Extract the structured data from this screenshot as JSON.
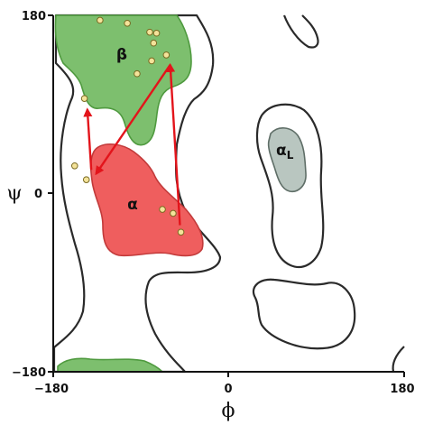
{
  "axes": {
    "x_title": "ϕ",
    "y_title": "ψ",
    "x_ticks": [
      "−180",
      "0",
      "180"
    ],
    "y_ticks": [
      "180",
      "0",
      "−180"
    ],
    "range": [
      -180,
      180
    ]
  },
  "regions": {
    "beta": {
      "label": "β",
      "fill": "#7dbf6e",
      "stroke": "#4f9a3f"
    },
    "alpha": {
      "label": "α",
      "fill": "#ef5e5e",
      "stroke": "#c23a3a"
    },
    "alphaL": {
      "label_main": "α",
      "label_sub": "L",
      "fill": "#b9c6c0",
      "stroke": "#5f6e67"
    }
  },
  "outline_color": "#2a2a2a",
  "arrow_color": "#e3141b",
  "point_fill": "#f4e39a",
  "point_stroke": "#7a6a22",
  "points": [
    {
      "phi": -132,
      "psi": 175
    },
    {
      "phi": -104,
      "psi": 172
    },
    {
      "phi": -81,
      "psi": 163
    },
    {
      "phi": -74,
      "psi": 162
    },
    {
      "phi": -77,
      "psi": 152
    },
    {
      "phi": -64,
      "psi": 140
    },
    {
      "phi": -79,
      "psi": 134
    },
    {
      "phi": -94,
      "psi": 121
    },
    {
      "phi": -148,
      "psi": 96
    },
    {
      "phi": -158,
      "psi": 28
    },
    {
      "phi": -146,
      "psi": 14
    },
    {
      "phi": -68,
      "psi": -16
    },
    {
      "phi": -57,
      "psi": -20
    },
    {
      "phi": -49,
      "psi": -39
    }
  ],
  "arrows": [
    {
      "from": [
        -141,
        24
      ],
      "to": [
        -145,
        85
      ]
    },
    {
      "from": [
        -50,
        -32
      ],
      "to": [
        -60,
        130
      ]
    },
    {
      "from": [
        -60,
        130
      ],
      "to": [
        -136,
        20
      ]
    }
  ]
}
